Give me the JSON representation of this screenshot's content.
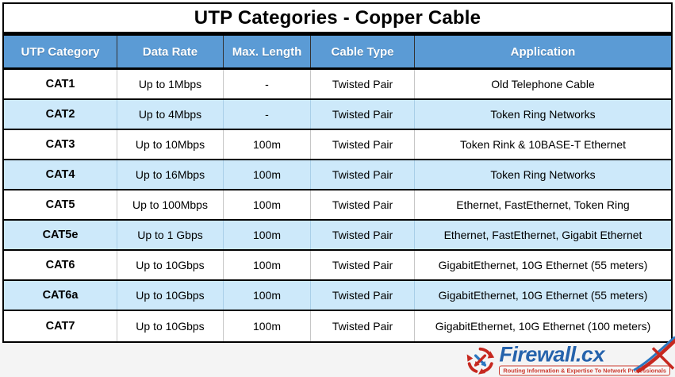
{
  "title": "UTP Categories - Copper Cable",
  "table": {
    "headers": [
      {
        "label": "UTP Category"
      },
      {
        "label": "Data Rate"
      },
      {
        "label": "Max. Length"
      },
      {
        "label": "Cable Type"
      },
      {
        "label": "Application"
      }
    ],
    "rows": [
      {
        "category": "CAT1",
        "data_rate": "Up to 1Mbps",
        "max_length": "-",
        "cable_type": "Twisted Pair",
        "application": "Old Telephone Cable"
      },
      {
        "category": "CAT2",
        "data_rate": "Up to 4Mbps",
        "max_length": "-",
        "cable_type": "Twisted Pair",
        "application": "Token Ring Networks"
      },
      {
        "category": "CAT3",
        "data_rate": "Up to 10Mbps",
        "max_length": "100m",
        "cable_type": "Twisted Pair",
        "application": "Token Rink & 10BASE-T Ethernet"
      },
      {
        "category": "CAT4",
        "data_rate": "Up to 16Mbps",
        "max_length": "100m",
        "cable_type": "Twisted Pair",
        "application": "Token Ring Networks"
      },
      {
        "category": "CAT5",
        "data_rate": "Up to 100Mbps",
        "max_length": "100m",
        "cable_type": "Twisted Pair",
        "application": "Ethernet, FastEthernet, Token Ring"
      },
      {
        "category": "CAT5e",
        "data_rate": "Up to 1 Gbps",
        "max_length": "100m",
        "cable_type": "Twisted Pair",
        "application": "Ethernet, FastEthernet, Gigabit Ethernet"
      },
      {
        "category": "CAT6",
        "data_rate": "Up to 10Gbps",
        "max_length": "100m",
        "cable_type": "Twisted Pair",
        "application": "GigabitEthernet, 10G Ethernet (55 meters)"
      },
      {
        "category": "CAT6a",
        "data_rate": "Up to 10Gbps",
        "max_length": "100m",
        "cable_type": "Twisted Pair",
        "application": "GigabitEthernet, 10G Ethernet (55 meters)"
      },
      {
        "category": "CAT7",
        "data_rate": "Up to 10Gbps",
        "max_length": "100m",
        "cable_type": "Twisted Pair",
        "application": "GigabitEthernet, 10G Ethernet (100 meters)"
      }
    ]
  },
  "footer": {
    "logo_text": "Firewall.cx",
    "tagline": "Routing Information & Expertise To Network Professionals"
  },
  "colors": {
    "header_bg": "#5b9bd5",
    "header_text": "#ffffff",
    "alt_row_bg": "#cde9fa",
    "row_bg": "#ffffff",
    "border": "#000000",
    "footer_bg": "#f4f4f4",
    "logo_blue": "#2663ac",
    "logo_red": "#c6281f",
    "tagline_red": "#cc3b30"
  },
  "chart_data": {
    "type": "table",
    "title": "UTP Categories - Copper Cable",
    "columns": [
      "UTP Category",
      "Data Rate",
      "Max. Length",
      "Cable Type",
      "Application"
    ],
    "rows": [
      [
        "CAT1",
        "Up to 1Mbps",
        "-",
        "Twisted Pair",
        "Old Telephone Cable"
      ],
      [
        "CAT2",
        "Up to 4Mbps",
        "-",
        "Twisted Pair",
        "Token Ring Networks"
      ],
      [
        "CAT3",
        "Up to 10Mbps",
        "100m",
        "Twisted Pair",
        "Token Rink & 10BASE-T Ethernet"
      ],
      [
        "CAT4",
        "Up to 16Mbps",
        "100m",
        "Twisted Pair",
        "Token Ring Networks"
      ],
      [
        "CAT5",
        "Up to 100Mbps",
        "100m",
        "Twisted Pair",
        "Ethernet, FastEthernet, Token Ring"
      ],
      [
        "CAT5e",
        "Up to 1 Gbps",
        "100m",
        "Twisted Pair",
        "Ethernet, FastEthernet, Gigabit Ethernet"
      ],
      [
        "CAT6",
        "Up to 10Gbps",
        "100m",
        "Twisted Pair",
        "GigabitEthernet, 10G Ethernet (55 meters)"
      ],
      [
        "CAT6a",
        "Up to 10Gbps",
        "100m",
        "Twisted Pair",
        "GigabitEthernet, 10G Ethernet (55 meters)"
      ],
      [
        "CAT7",
        "Up to 10Gbps",
        "100m",
        "Twisted Pair",
        "GigabitEthernet, 10G Ethernet (100 meters)"
      ]
    ]
  }
}
